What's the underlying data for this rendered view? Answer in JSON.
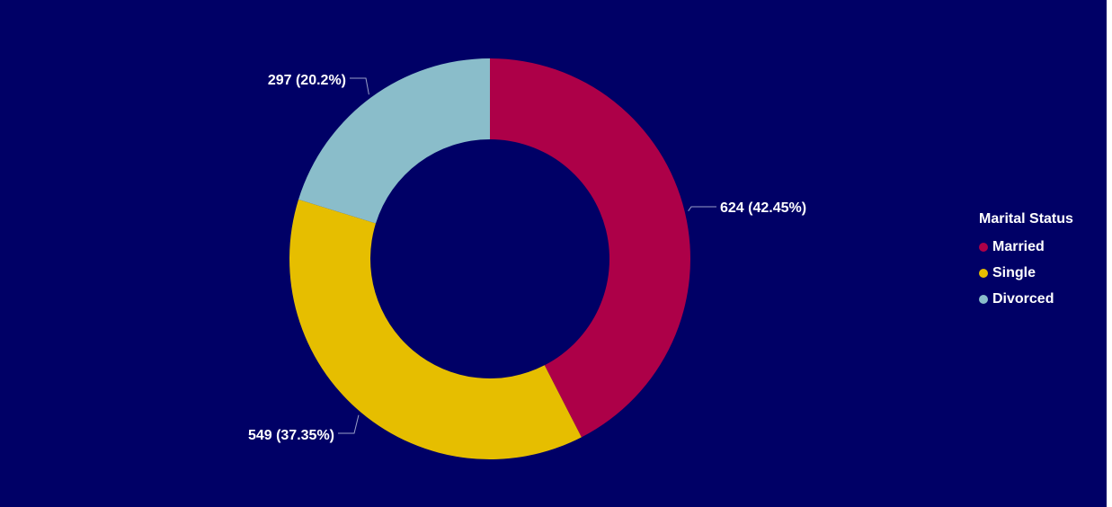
{
  "chart_data": {
    "type": "pie",
    "variant": "donut",
    "legend_title": "Marital Status",
    "legend_position": "right",
    "background": "#000066",
    "categories": [
      "Married",
      "Single",
      "Divorced"
    ],
    "values": [
      624,
      549,
      297
    ],
    "percentages": [
      "42.45%",
      "37.35%",
      "20.2%"
    ],
    "data_labels": [
      "624 (42.45%)",
      "549 (37.35%)",
      "297 (20.2%)"
    ],
    "colors": [
      "#AD0048",
      "#E6BE00",
      "#8ABDCA"
    ]
  }
}
